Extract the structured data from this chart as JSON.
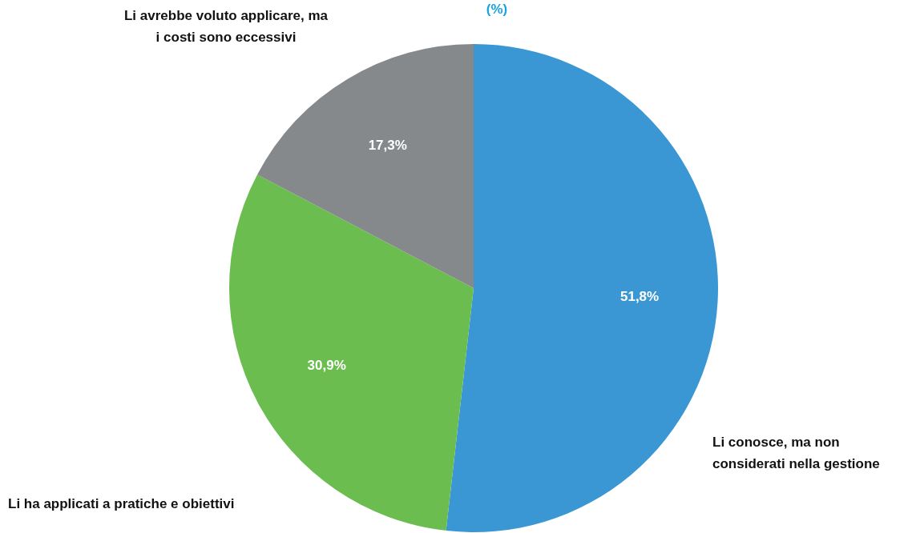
{
  "chart_data": {
    "type": "pie",
    "title": "(%)",
    "categories": [
      "Li conosce, ma non considerati nella gestione",
      "Li ha applicati a pratiche e obiettivi",
      "Li avrebbe voluto applicare, ma i costi sono eccessivi"
    ],
    "values": [
      51.8,
      30.9,
      17.3
    ],
    "colors": [
      "#3a97d4",
      "#6cbd4f",
      "#86898b"
    ],
    "value_labels": [
      "51,8%",
      "30,9%",
      "17,3%"
    ],
    "legend": false
  }
}
